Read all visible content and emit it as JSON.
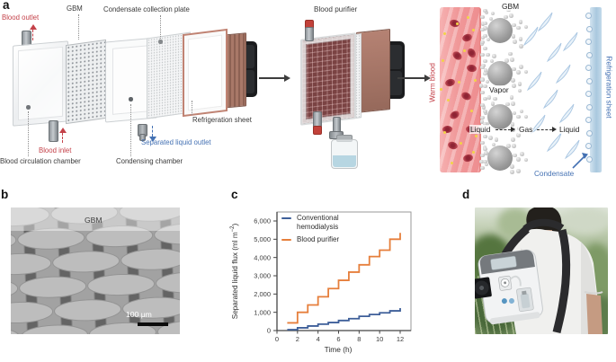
{
  "colors": {
    "label_red": "#c4424a",
    "label_blue": "#4471b3",
    "copper_frame": "#c08373",
    "heatsink_brown": "#a87868",
    "vessel_pink": "#f2a0a2",
    "refrigeration_strip_blue": "#b7d2e6"
  },
  "panels": {
    "a": "a",
    "b": "b",
    "c": "c",
    "d": "d"
  },
  "panel_a": {
    "exploded_labels": {
      "blood_outlet": "Blood outlet",
      "gbm": "GBM",
      "condensate_collection_plate": "Condensate collection plate",
      "refrigeration_sheet": "Refrigeration sheet",
      "blood_inlet": "Blood inlet",
      "separated_liquid_outlet": "Separated liquid outlet",
      "blood_circulation_chamber": "Blood circulation chamber",
      "condensing_chamber": "Condensing chamber"
    },
    "assembled_label": "Blood purifier",
    "schematic_labels": {
      "warm_blood": "Warm blood",
      "gbm": "GBM",
      "vapor": "Vapor",
      "liquid_left": "Liquid",
      "gas": "Gas",
      "liquid_right": "Liquid",
      "refrigeration_sheet": "Refrigeration sheet",
      "condensate": "Condensate"
    }
  },
  "panel_b": {
    "annotation": "GBM",
    "scale_bar_label": "100 μm"
  },
  "chart_data": {
    "type": "line",
    "line_style": "step-post",
    "title": "",
    "xlabel": "Time (h)",
    "ylabel": "Separated liquid flux (ml m⁻²)",
    "ylabel_display": {
      "pre": "Separated liquid flux (ml m",
      "sup": "−2",
      "post": ")"
    },
    "xlim": [
      0,
      13
    ],
    "ylim": [
      0,
      6500
    ],
    "xticks": [
      0,
      2,
      4,
      6,
      8,
      10,
      12
    ],
    "yticks": [
      0,
      1000,
      2000,
      3000,
      4000,
      5000,
      6000
    ],
    "ytick_labels": [
      "0",
      "1,000",
      "2,000",
      "3,000",
      "4,000",
      "5,000",
      "6,000"
    ],
    "x_hours": [
      1,
      2,
      3,
      4,
      5,
      6,
      7,
      8,
      9,
      10,
      11,
      12
    ],
    "legend_position": "top-left",
    "grid": false,
    "series": [
      {
        "name": "Conventional hemodialysis",
        "color": "#3e5f99",
        "values": [
          50,
          150,
          250,
          350,
          440,
          550,
          650,
          780,
          880,
          970,
          1080,
          1230
        ]
      },
      {
        "name": "Blood purifier",
        "color": "#e67f3c",
        "values": [
          420,
          1000,
          1400,
          1850,
          2300,
          2750,
          3200,
          3600,
          4050,
          4400,
          5000,
          5350
        ]
      }
    ]
  }
}
